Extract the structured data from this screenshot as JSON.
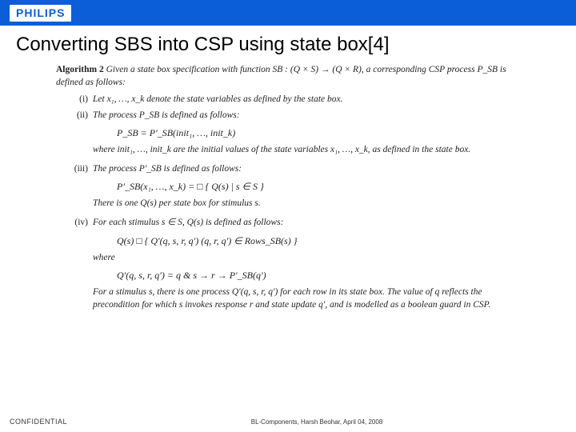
{
  "banner": {
    "logo_text": "PHILIPS",
    "background_color": "#0b5ed7",
    "logo_color": "#0b5ed7",
    "logo_bg": "#ffffff"
  },
  "title": "Converting SBS into CSP using state box[4]",
  "algorithm": {
    "header_label": "Algorithm 2",
    "header_text": "Given a state box specification with function SB : (Q × S) → (Q × R), a corresponding CSP process P_SB is defined as follows:",
    "items": [
      {
        "num": "(i)",
        "text": "Let x₁, …, x_k denote the state variables as defined by the state box."
      },
      {
        "num": "(ii)",
        "text": "The process P_SB is defined as follows:",
        "formula": "P_SB = P′_SB(init₁, …, init_k)",
        "after": "where init₁, …, init_k are the initial values of the state variables x₁, …, x_k, as defined in the state box."
      },
      {
        "num": "(iii)",
        "text": "The process P′_SB is defined as follows:",
        "formula": "P′_SB(x₁, …, x_k) = □ { Q(s)  |  s ∈ S }",
        "after": "There is one Q(s) per state box for stimulus s."
      },
      {
        "num": "(iv)",
        "text": "For each stimulus s ∈ S, Q(s) is defined as follows:",
        "formula": "Q(s)    □ { Q′(q, s, r, q′)    (q, r, q′) ∈ Rows_SB(s) }",
        "where_label": "where",
        "formula2": "Q′(q, s, r, q′) = q & s → r → P′_SB(q′)",
        "after": "For a stimulus s, there is one process Q′(q, s, r, q′) for each row in its state box. The value of q reflects the precondition for which s invokes response r and state update q′, and is modelled as a boolean guard in CSP."
      }
    ]
  },
  "footer": {
    "left": "CONFIDENTIAL",
    "center": "BL-Components, Harsh Beohar, April 04, 2008"
  }
}
